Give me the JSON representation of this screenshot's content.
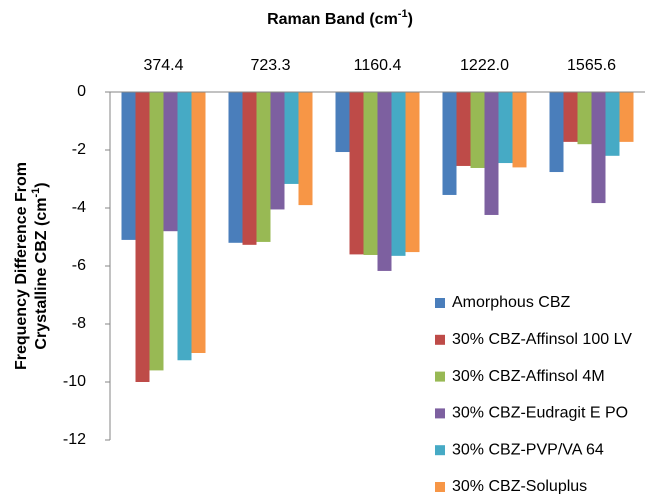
{
  "chart_data": {
    "type": "bar",
    "x_axis_title": [
      "Raman Band (cm",
      "-1",
      ")"
    ],
    "y_axis_title": [
      [
        "Frequency Difference From"
      ],
      [
        "Crystalline CBZ (cm",
        "-1",
        ")"
      ]
    ],
    "categories": [
      "374.4",
      "723.3",
      "1160.4",
      "1222.0",
      "1565.6"
    ],
    "series": [
      {
        "name": "Amorphous CBZ",
        "color": "#4a7ebb",
        "values": [
          -5.1,
          -5.2,
          -2.07,
          -3.55,
          -2.76
        ]
      },
      {
        "name": "30% CBZ-Affinsol 100 LV",
        "color": "#be4b48",
        "values": [
          -10.0,
          -5.27,
          -5.6,
          -2.55,
          -1.72
        ]
      },
      {
        "name": "30% CBZ-Affinsol 4M",
        "color": "#98b954",
        "values": [
          -9.6,
          -5.17,
          -5.62,
          -2.62,
          -1.8
        ]
      },
      {
        "name": "30% CBZ-Eudragit E PO",
        "color": "#7d60a0",
        "values": [
          -4.8,
          -4.05,
          -6.17,
          -4.24,
          -3.83
        ]
      },
      {
        "name": "30% CBZ-PVP/VA 64",
        "color": "#46aac5",
        "values": [
          -9.25,
          -3.17,
          -5.65,
          -2.45,
          -2.2
        ]
      },
      {
        "name": "30% CBZ-Soluplus",
        "color": "#f79646",
        "values": [
          -9.0,
          -3.9,
          -5.52,
          -2.6,
          -1.72
        ]
      }
    ],
    "ylim": [
      -12,
      0
    ],
    "yticks": [
      0,
      -2,
      -4,
      -6,
      -8,
      -10,
      -12
    ],
    "legend": "lower right"
  }
}
